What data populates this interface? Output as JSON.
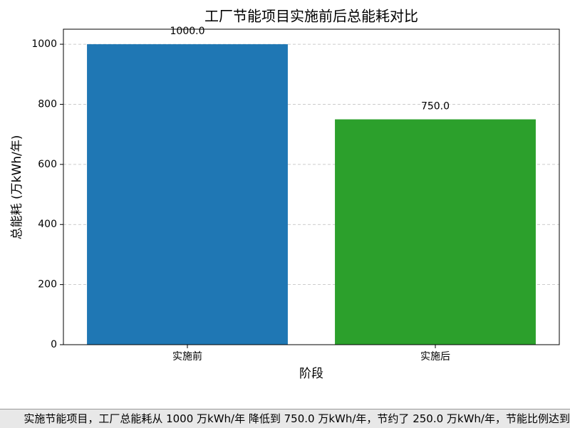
{
  "chart_data": {
    "type": "bar",
    "title": "工厂节能项目实施前后总能耗对比",
    "x_label": "阶段",
    "y_label": "总能耗 (万kWh/年)",
    "categories": [
      "实施前",
      "实施后"
    ],
    "values": [
      1000,
      750
    ],
    "value_labels": [
      "1000.0",
      "750.0"
    ],
    "colors": [
      "#1f77b4",
      "#2ca02c"
    ],
    "ylim": [
      0,
      1050
    ],
    "yticks": [
      0,
      200,
      400,
      600,
      800,
      1000
    ],
    "grid": true,
    "footer": "实施节能项目，工厂总能耗从 1000 万kWh/年 降低到 750.0 万kWh/年，节约了 250.0 万kWh/年，节能比例达到"
  }
}
